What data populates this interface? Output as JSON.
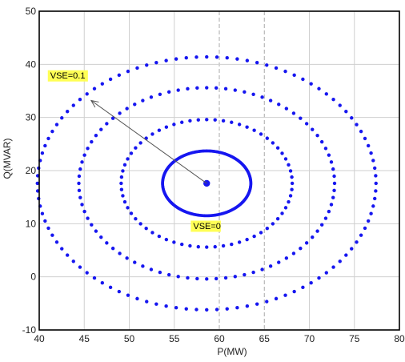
{
  "chart_data": {
    "type": "scatter",
    "xlabel": "P(MW)",
    "ylabel": "Q(MVAR)",
    "xlim": [
      40,
      80
    ],
    "ylim": [
      -10,
      50
    ],
    "xticks": [
      40,
      45,
      50,
      55,
      60,
      65,
      70,
      75,
      80
    ],
    "yticks": [
      -10,
      0,
      10,
      20,
      30,
      40,
      50
    ],
    "grid": true,
    "center": {
      "x": 58.6,
      "y": 17.6
    },
    "contours": [
      {
        "rx": 4.9,
        "ry": 6.1,
        "points": 240,
        "style": "solid"
      },
      {
        "rx": 9.5,
        "ry": 12.0,
        "points": 64,
        "style": "dotted"
      },
      {
        "rx": 14.2,
        "ry": 18.0,
        "points": 84,
        "style": "dotted"
      },
      {
        "rx": 18.8,
        "ry": 23.8,
        "points": 104,
        "style": "dotted"
      }
    ],
    "annotations": [
      {
        "text": "VSE=0.1",
        "x": 45.5,
        "y": 33.5,
        "label_x": 43.0,
        "label_y": 37.3
      },
      {
        "text": "VSE=0",
        "x": 58.6,
        "y": 17.6,
        "label_x": 58.5,
        "label_y": 9.0
      }
    ],
    "colors": {
      "points": "#1616f0",
      "grid_major": "#cfcfcf",
      "grid_dashed": "#a8a8a8",
      "annotation_bg": "#ffff55",
      "arrow": "#555555",
      "frame": "#000000"
    }
  }
}
